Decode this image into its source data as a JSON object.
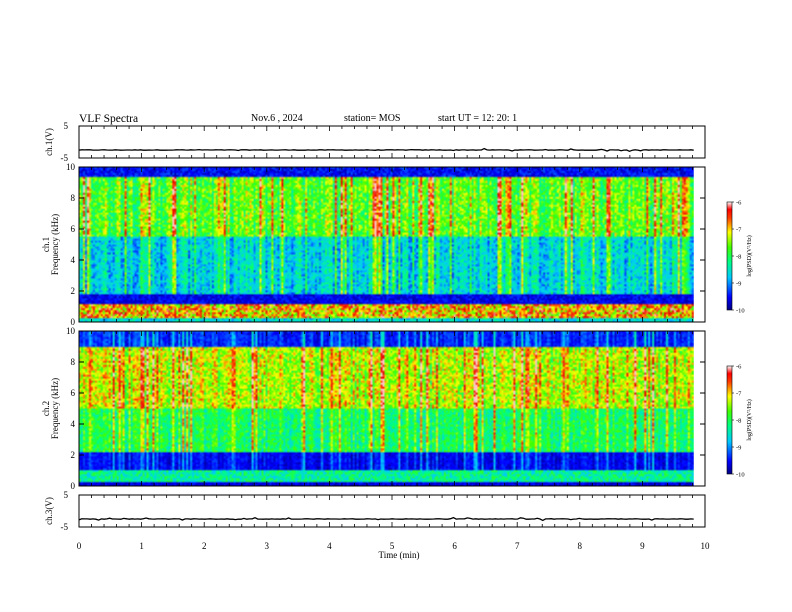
{
  "header": {
    "title": "VLF Spectra",
    "date": "Nov.6 , 2024",
    "station": "station= MOS",
    "start_ut": "start UT =  12: 20: 1"
  },
  "chart_data": [
    {
      "type": "line",
      "title": "",
      "ylabel": "ch.1(V)",
      "xlabel": "",
      "xlim": [
        0,
        10
      ],
      "ylim": [
        -5,
        5
      ],
      "yticks": [
        "5",
        "-5"
      ],
      "series": [
        {
          "values_description": "",
          "level": -2.5
        }
      ]
    },
    {
      "type": "heatmap",
      "title": "",
      "ylabel": "ch.1 Frequency (kHz)",
      "xlabel": "",
      "xlim": [
        0,
        10
      ],
      "ylim": [
        0,
        10
      ],
      "yticks": [
        "0",
        "2",
        "4",
        "6",
        "8",
        "10"
      ],
      "data_end_min": 9.82,
      "colorbar": {
        "label": "log(PSD)(V²/Hz)",
        "range": [
          -10,
          -6
        ],
        "ticks": [
          "-6",
          "-7",
          "-8",
          "-9",
          "-10"
        ]
      }
    },
    {
      "type": "heatmap",
      "title": "",
      "ylabel": "ch.2 Frequency (kHz)",
      "xlabel": "",
      "xlim": [
        0,
        10
      ],
      "ylim": [
        0,
        10
      ],
      "yticks": [
        "0",
        "2",
        "4",
        "6",
        "8",
        "10"
      ],
      "data_end_min": 9.82,
      "colorbar": {
        "label": "log(PSD)(V²/Hz)",
        "range": [
          -10,
          -6
        ],
        "ticks": [
          "-6",
          "-7",
          "-8",
          "-9",
          "-10"
        ]
      }
    },
    {
      "type": "line",
      "title": "",
      "ylabel": "ch.3(V)",
      "xlabel": "Time (min)",
      "xlim": [
        0,
        10
      ],
      "ylim": [
        -5,
        5
      ],
      "yticks": [
        "5",
        "-5"
      ],
      "xticks": [
        "0",
        "1",
        "2",
        "3",
        "4",
        "5",
        "6",
        "7",
        "8",
        "9",
        "10"
      ],
      "series": [
        {
          "level": -2.5
        }
      ]
    }
  ]
}
